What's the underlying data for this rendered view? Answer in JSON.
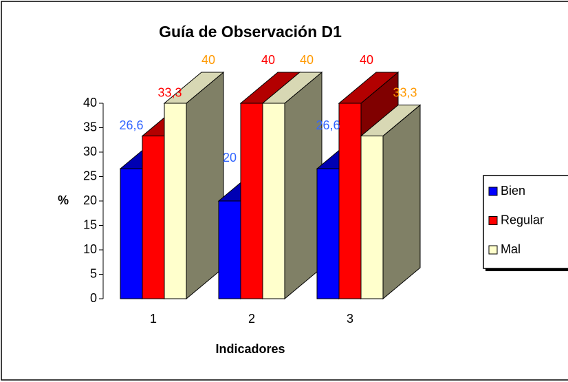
{
  "chart_data": {
    "type": "bar3d",
    "title": "Guía de Observación D1",
    "x_label": "Indicadores",
    "y_label": "%",
    "categories": [
      "1",
      "2",
      "3"
    ],
    "series": [
      {
        "name": "Bien",
        "color": "#0000ff",
        "label_color": "#3366ff",
        "values": [
          26.6,
          20,
          26.6
        ],
        "value_labels": [
          "26,6",
          "20",
          "26,6"
        ]
      },
      {
        "name": "Regular",
        "color": "#ff0000",
        "label_color": "#ff0000",
        "values": [
          33.3,
          40,
          40
        ],
        "value_labels": [
          "33,3",
          "40",
          "40"
        ]
      },
      {
        "name": "Mal",
        "color": "#ffffcc",
        "label_color": "#ff9900",
        "values": [
          40,
          40,
          33.3
        ],
        "value_labels": [
          "40",
          "40",
          "33,3"
        ]
      }
    ],
    "ylim": [
      0,
      40
    ],
    "yticks": [
      0,
      5,
      10,
      15,
      20,
      25,
      30,
      35,
      40
    ],
    "legend": "right"
  }
}
